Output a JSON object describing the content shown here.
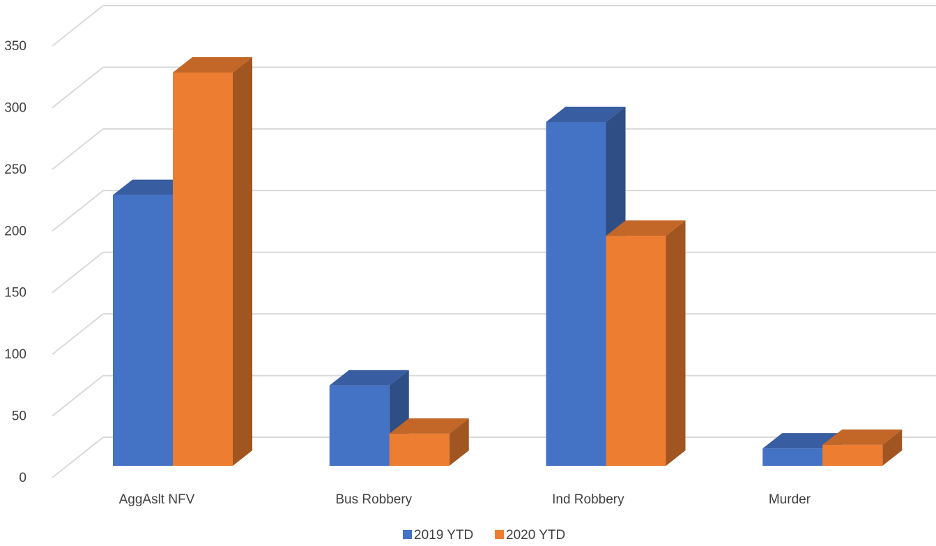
{
  "chart_data": {
    "type": "bar",
    "style": "3d-clustered-column",
    "categories": [
      "AggAslt NFV",
      "Bus Robbery",
      "Ind Robbery",
      "Murder"
    ],
    "series": [
      {
        "name": "2019 YTD",
        "values": [
          219,
          65,
          278,
          14
        ],
        "color": "#4472C4"
      },
      {
        "name": "2020 YTD",
        "values": [
          318,
          26,
          186,
          17
        ],
        "color": "#ED7D31"
      }
    ],
    "y_ticks": [
      "0",
      "50",
      "100",
      "150",
      "200",
      "250",
      "300",
      "350"
    ],
    "ylim": [
      0,
      350
    ],
    "grid": true,
    "legend_position": "bottom"
  }
}
